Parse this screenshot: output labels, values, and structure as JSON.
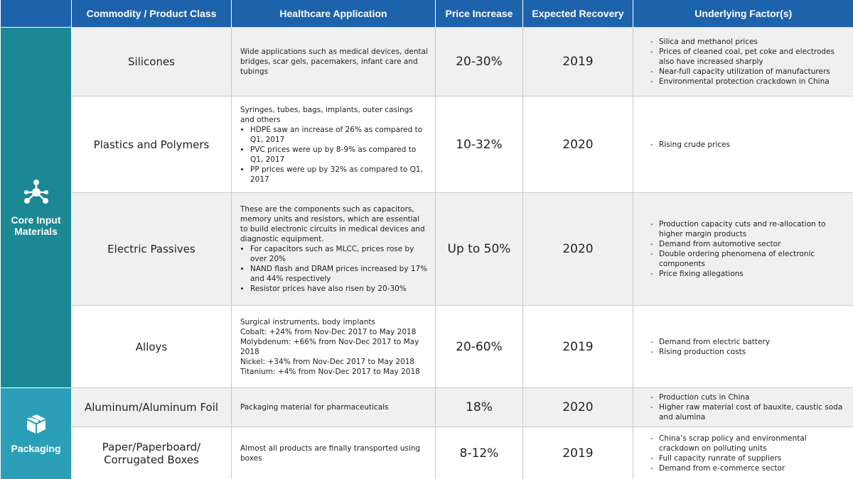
{
  "header": {
    "columns": [
      "Commodity / Product Class",
      "Healthcare Application",
      "Price Increase",
      "Expected Recovery",
      "Underlying Factor(s)"
    ]
  },
  "groups": [
    {
      "label": "Core Input Materials",
      "rows": [
        {
          "commodity": "Silicones",
          "application": {
            "lines": [
              "Wide applications such as medical devices, dental bridges, scar gels, pacemakers, infant care and tubings"
            ]
          },
          "price": "20-30%",
          "recovery": "2019",
          "factors": [
            "Silica and methanol prices",
            "Prices of cleaned coal, pet coke and electrodes also have increased sharply",
            "Near-full capacity utilization of manufacturers",
            "Environmental protection crackdown in China"
          ]
        },
        {
          "commodity": "Plastics and Polymers",
          "application": {
            "lines": [
              "Syringes, tubes, bags, implants, outer casings and others"
            ],
            "bullets": [
              "HDPE saw an increase of 26% as compared to Q1, 2017",
              "PVC prices were up by 8-9% as compared to Q1, 2017",
              "PP prices were up by 32% as compared to Q1, 2017"
            ]
          },
          "price": "10-32%",
          "recovery": "2020",
          "factors": [
            "Rising crude prices"
          ]
        },
        {
          "commodity": "Electric Passives",
          "application": {
            "lines": [
              "These are the components such as capacitors, memory units and resistors, which are essential to build electronic circuits in medical devices and diagnostic equipment."
            ],
            "bullets": [
              "For capacitors such as MLCC, prices rose by over 20%",
              "NAND flash and DRAM prices increased by 17% and 44% respectively",
              "Resistor prices have also risen by 20-30%"
            ]
          },
          "price": "Up to 50%",
          "recovery": "2020",
          "factors": [
            "Production capacity cuts and re-allocation to higher margin products",
            "Demand from automotive sector",
            "Double ordering phenomena of electronic components",
            "Price fixing allegations"
          ]
        },
        {
          "commodity": "Alloys",
          "application": {
            "lines": [
              "Surgical instruments, body implants",
              "Cobalt: +24% from Nov-Dec 2017 to May 2018",
              "Molybdenum: +66% from Nov-Dec 2017 to May 2018",
              "Nickel: +34% from Nov-Dec 2017 to May 2018",
              "Titanium: +4% from Nov-Dec 2017 to May 2018"
            ]
          },
          "price": "20-60%",
          "recovery": "2019",
          "factors": [
            "Demand from electric battery",
            "Rising production costs"
          ]
        }
      ]
    },
    {
      "label": "Packaging",
      "rows": [
        {
          "commodity": "Aluminum/Aluminum Foil",
          "application": {
            "lines": [
              "Packaging material for pharmaceuticals"
            ]
          },
          "price": "18%",
          "recovery": "2020",
          "factors": [
            "Production cuts in China",
            "Higher raw material cost of bauxite, caustic soda and alumina"
          ]
        },
        {
          "commodity": "Paper/Paperboard/ Corrugated Boxes",
          "application": {
            "lines": [
              "Almost all products are finally transported using boxes"
            ]
          },
          "price": "8-12%",
          "recovery": "2019",
          "factors": [
            "China’s scrap policy and environmental crackdown on polluting units",
            "Full capacity runrate of suppliers",
            "Demand from e-commerce sector"
          ]
        }
      ]
    }
  ]
}
